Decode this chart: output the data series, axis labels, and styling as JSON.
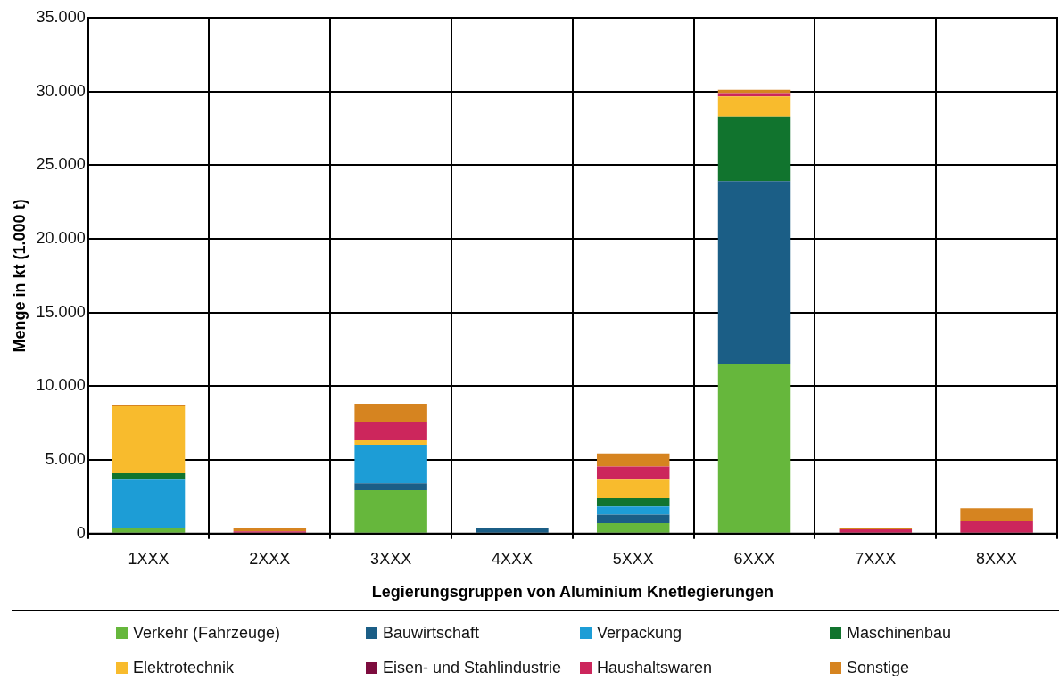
{
  "chart_data": {
    "type": "bar",
    "stacked": true,
    "xlabel": "Legierungsgruppen von Aluminium Knetlegierungen",
    "ylabel": "Menge in kt (1.000 t)",
    "categories": [
      "1XXX",
      "2XXX",
      "3XXX",
      "4XXX",
      "5XXX",
      "6XXX",
      "7XXX",
      "8XXX"
    ],
    "series": [
      {
        "name": "Verkehr (Fahrzeuge)",
        "color": "#66b73c",
        "values": [
          380,
          0,
          2950,
          0,
          720,
          11520,
          0,
          0
        ]
      },
      {
        "name": "Bauwirtschaft",
        "color": "#1b5e86",
        "values": [
          0,
          0,
          470,
          400,
          570,
          12400,
          0,
          0
        ]
      },
      {
        "name": "Verpackung",
        "color": "#1d9dd6",
        "values": [
          3280,
          0,
          2610,
          0,
          560,
          0,
          0,
          0
        ]
      },
      {
        "name": "Maschinenbau",
        "color": "#11742e",
        "values": [
          440,
          0,
          0,
          0,
          560,
          4380,
          0,
          0
        ]
      },
      {
        "name": "Elektrotechnik",
        "color": "#f8bb2d",
        "values": [
          4540,
          0,
          300,
          0,
          1250,
          1360,
          0,
          0
        ]
      },
      {
        "name": "Eisen- und Stahlindustrie",
        "color": "#7d0c3e",
        "values": [
          0,
          0,
          0,
          0,
          0,
          0,
          0,
          0
        ]
      },
      {
        "name": "Haushaltswaren",
        "color": "#cc265c",
        "values": [
          0,
          160,
          1270,
          0,
          900,
          230,
          290,
          840
        ]
      },
      {
        "name": "Sonstige",
        "color": "#d68420",
        "values": [
          90,
          220,
          1220,
          0,
          890,
          230,
          70,
          880
        ]
      }
    ],
    "ylim": [
      0,
      35000
    ],
    "yticks": [
      {
        "value": 0,
        "label": "0"
      },
      {
        "value": 5000,
        "label": "5.000"
      },
      {
        "value": 10000,
        "label": "10.000"
      },
      {
        "value": 15000,
        "label": "15.000"
      },
      {
        "value": 20000,
        "label": "20.000"
      },
      {
        "value": 25000,
        "label": "25.000"
      },
      {
        "value": 30000,
        "label": "30.000"
      },
      {
        "value": 35000,
        "label": "35.000"
      }
    ],
    "grid": true,
    "legend": "bottom"
  }
}
